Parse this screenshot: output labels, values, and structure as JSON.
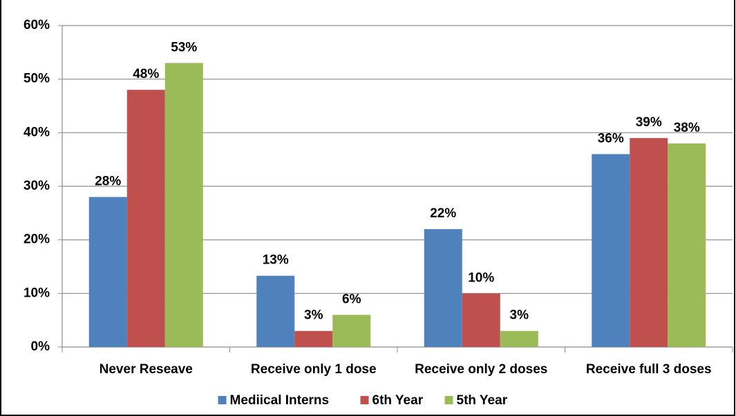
{
  "chart_data": {
    "type": "bar",
    "categories": [
      "Never Reseave",
      "Receive only 1 dose",
      "Receive only 2 doses",
      "Receive full 3 doses"
    ],
    "series": [
      {
        "name": "Mediical Interns",
        "color": "#4f81bd",
        "values": [
          28,
          13.3,
          22,
          36
        ],
        "value_labels": [
          "28%",
          "13%",
          "22%",
          "36%"
        ]
      },
      {
        "name": "6th Year",
        "color": "#c0504d",
        "values": [
          48,
          3,
          10,
          39
        ],
        "value_labels": [
          "48%",
          "3%",
          "10%",
          "39%"
        ]
      },
      {
        "name": "5th Year",
        "color": "#9bbb59",
        "values": [
          53,
          6,
          3,
          38
        ],
        "value_labels": [
          "53%",
          "6%",
          "3%",
          "38%"
        ]
      }
    ],
    "ylim": [
      0,
      60
    ],
    "yticks": [
      {
        "value": 0,
        "label": "0%"
      },
      {
        "value": 10,
        "label": "10%"
      },
      {
        "value": 20,
        "label": "20%"
      },
      {
        "value": 30,
        "label": "30%"
      },
      {
        "value": 40,
        "label": "40%"
      },
      {
        "value": 50,
        "label": "50%"
      },
      {
        "value": 60,
        "label": "60%"
      }
    ],
    "grid": true,
    "legend": "bottom"
  }
}
